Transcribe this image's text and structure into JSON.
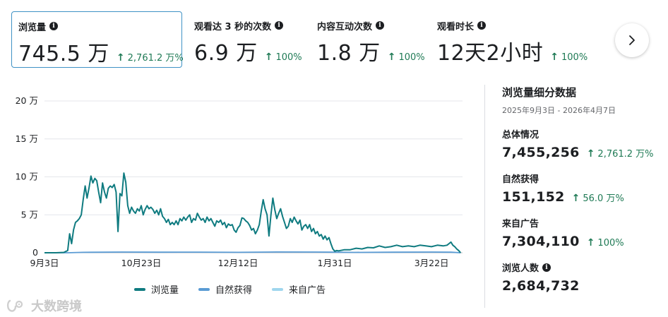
{
  "metrics": [
    {
      "label": "浏览量",
      "value": "745.5 万",
      "change": "2,761.2 万%",
      "has_info": true,
      "active": true
    },
    {
      "label": "观看达 3 秒的次数",
      "value": "6.9 万",
      "change": "100%",
      "has_info": true,
      "active": false
    },
    {
      "label": "内容互动次数",
      "value": "1.8 万",
      "change": "100%",
      "has_info": true,
      "active": false
    },
    {
      "label": "观看时长",
      "value": "12天2小时",
      "change": "100%",
      "has_info": true,
      "active": false
    }
  ],
  "info_glyph": "i",
  "arrow_glyph": "↑",
  "next_button_icon": "chevron-right-icon",
  "chart_data": {
    "type": "line",
    "y_ticks": [
      "0",
      "5 万",
      "10 万",
      "15 万",
      "20 万"
    ],
    "ylim": [
      0,
      200000
    ],
    "x_tick_labels": [
      "9月3日",
      "10月23日",
      "12月12日",
      "1月31日",
      "3月22日"
    ],
    "x_tick_days": [
      0,
      50,
      100,
      150,
      200
    ],
    "x_range_days": [
      0,
      216
    ],
    "grid": true,
    "series": [
      {
        "name": "浏览量",
        "color": "#0f7b80",
        "points": [
          [
            0,
            0
          ],
          [
            6,
            0
          ],
          [
            10,
            500
          ],
          [
            12,
            3000
          ],
          [
            13,
            25000
          ],
          [
            14,
            12000
          ],
          [
            15,
            30000
          ],
          [
            16,
            40000
          ],
          [
            17,
            42000
          ],
          [
            18,
            45000
          ],
          [
            19,
            50000
          ],
          [
            20,
            70000
          ],
          [
            21,
            88000
          ],
          [
            22,
            72000
          ],
          [
            23,
            85000
          ],
          [
            24,
            101000
          ],
          [
            25,
            92000
          ],
          [
            26,
            98000
          ],
          [
            27,
            95000
          ],
          [
            28,
            80000
          ],
          [
            29,
            66000
          ],
          [
            30,
            92000
          ],
          [
            31,
            80000
          ],
          [
            32,
            72000
          ],
          [
            33,
            85000
          ],
          [
            34,
            88000
          ],
          [
            35,
            86000
          ],
          [
            36,
            90000
          ],
          [
            37,
            80000
          ],
          [
            38,
            28000
          ],
          [
            39,
            78000
          ],
          [
            40,
            75000
          ],
          [
            41,
            105000
          ],
          [
            42,
            93000
          ],
          [
            43,
            62000
          ],
          [
            44,
            52000
          ],
          [
            45,
            60000
          ],
          [
            46,
            55000
          ],
          [
            47,
            52000
          ],
          [
            48,
            58000
          ],
          [
            49,
            55000
          ],
          [
            50,
            62000
          ],
          [
            51,
            50000
          ],
          [
            52,
            57000
          ],
          [
            53,
            62000
          ],
          [
            54,
            58000
          ],
          [
            55,
            60000
          ],
          [
            56,
            57000
          ],
          [
            57,
            52000
          ],
          [
            58,
            56000
          ],
          [
            59,
            50000
          ],
          [
            60,
            58000
          ],
          [
            61,
            48000
          ],
          [
            62,
            45000
          ],
          [
            63,
            40000
          ],
          [
            64,
            44000
          ],
          [
            65,
            37000
          ],
          [
            66,
            40000
          ],
          [
            67,
            37000
          ],
          [
            68,
            42000
          ],
          [
            69,
            37000
          ],
          [
            70,
            45000
          ],
          [
            71,
            42000
          ],
          [
            72,
            47000
          ],
          [
            73,
            43000
          ],
          [
            74,
            47000
          ],
          [
            75,
            50000
          ],
          [
            76,
            40000
          ],
          [
            77,
            45000
          ],
          [
            78,
            43000
          ],
          [
            79,
            52000
          ],
          [
            80,
            47000
          ],
          [
            81,
            43000
          ],
          [
            82,
            45000
          ],
          [
            83,
            40000
          ],
          [
            84,
            47000
          ],
          [
            85,
            42000
          ],
          [
            86,
            45000
          ],
          [
            87,
            40000
          ],
          [
            88,
            35000
          ],
          [
            89,
            42000
          ],
          [
            90,
            40000
          ],
          [
            91,
            43000
          ],
          [
            92,
            37000
          ],
          [
            93,
            40000
          ],
          [
            94,
            33000
          ],
          [
            95,
            38000
          ],
          [
            96,
            36000
          ],
          [
            97,
            37000
          ],
          [
            98,
            30000
          ],
          [
            99,
            27000
          ],
          [
            100,
            33000
          ],
          [
            101,
            36000
          ],
          [
            102,
            46000
          ],
          [
            103,
            45000
          ],
          [
            104,
            42000
          ],
          [
            105,
            40000
          ],
          [
            106,
            36000
          ],
          [
            107,
            30000
          ],
          [
            108,
            32000
          ],
          [
            109,
            25000
          ],
          [
            110,
            30000
          ],
          [
            111,
            37000
          ],
          [
            112,
            55000
          ],
          [
            113,
            70000
          ],
          [
            114,
            58000
          ],
          [
            115,
            50000
          ],
          [
            116,
            22000
          ],
          [
            117,
            50000
          ],
          [
            118,
            72000
          ],
          [
            119,
            57000
          ],
          [
            120,
            45000
          ],
          [
            121,
            52000
          ],
          [
            122,
            58000
          ],
          [
            123,
            48000
          ],
          [
            124,
            40000
          ],
          [
            125,
            32000
          ],
          [
            126,
            35000
          ],
          [
            127,
            45000
          ],
          [
            128,
            40000
          ],
          [
            129,
            47000
          ],
          [
            130,
            42000
          ],
          [
            131,
            38000
          ],
          [
            132,
            43000
          ],
          [
            133,
            30000
          ],
          [
            134,
            35000
          ],
          [
            135,
            37000
          ],
          [
            136,
            32000
          ],
          [
            137,
            37000
          ],
          [
            138,
            28000
          ],
          [
            139,
            32000
          ],
          [
            140,
            25000
          ],
          [
            141,
            28000
          ],
          [
            142,
            22000
          ],
          [
            143,
            24000
          ],
          [
            144,
            18000
          ],
          [
            145,
            22000
          ],
          [
            146,
            17000
          ],
          [
            147,
            20000
          ],
          [
            148,
            12000
          ],
          [
            149,
            5000
          ],
          [
            150,
            2000
          ],
          [
            151,
            3000
          ],
          [
            152,
            2500
          ],
          [
            155,
            4000
          ],
          [
            158,
            4000
          ],
          [
            161,
            6000
          ],
          [
            164,
            5000
          ],
          [
            167,
            7000
          ],
          [
            170,
            6500
          ],
          [
            173,
            9000
          ],
          [
            176,
            7000
          ],
          [
            179,
            8000
          ],
          [
            182,
            10000
          ],
          [
            185,
            8000
          ],
          [
            188,
            9000
          ],
          [
            191,
            8000
          ],
          [
            194,
            10000
          ],
          [
            197,
            9000
          ],
          [
            200,
            8000
          ],
          [
            203,
            10000
          ],
          [
            206,
            9000
          ],
          [
            208,
            10000
          ],
          [
            210,
            14000
          ],
          [
            211,
            10000
          ],
          [
            212,
            8000
          ],
          [
            213,
            5000
          ],
          [
            214,
            3000
          ],
          [
            215,
            0
          ]
        ]
      },
      {
        "name": "自然获得",
        "color": "#5a9bd4",
        "points": [
          [
            0,
            0
          ],
          [
            12,
            0
          ],
          [
            20,
            600
          ],
          [
            40,
            900
          ],
          [
            60,
            700
          ],
          [
            80,
            800
          ],
          [
            100,
            600
          ],
          [
            120,
            1000
          ],
          [
            140,
            900
          ],
          [
            150,
            700
          ],
          [
            160,
            500
          ],
          [
            180,
            700
          ],
          [
            200,
            900
          ],
          [
            210,
            700
          ],
          [
            215,
            0
          ]
        ]
      },
      {
        "name": "来自广告",
        "color": "#9fd6ee",
        "points": []
      }
    ]
  },
  "legend": [
    {
      "label": "浏览量",
      "color": "#0f7b80"
    },
    {
      "label": "自然获得",
      "color": "#5a9bd4"
    },
    {
      "label": "来自广告",
      "color": "#9fd6ee"
    }
  ],
  "side": {
    "title": "浏览量细分数据",
    "date_range": "2025年9月3日 - 2026年4月7日",
    "sections": [
      {
        "label": "总体情况",
        "value": "7,455,256",
        "change": "2,761.2 万%",
        "has_info": false
      },
      {
        "label": "自然获得",
        "value": "151,152",
        "change": "56.0 万%",
        "has_info": false
      },
      {
        "label": "来自广告",
        "value": "7,304,110",
        "change": "100%",
        "has_info": false
      },
      {
        "label": "浏览人数",
        "value": "2,684,732",
        "change": "",
        "has_info": true
      }
    ]
  },
  "watermark": {
    "text": "大数跨境",
    "color": "#c9c9c9"
  }
}
